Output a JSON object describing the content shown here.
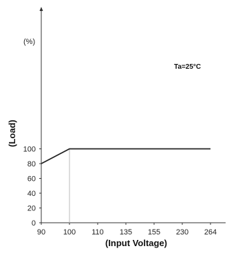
{
  "chart_data": {
    "type": "line",
    "x_categories": [
      "90",
      "100",
      "110",
      "135",
      "155",
      "230",
      "264"
    ],
    "y_ticks": [
      0,
      20,
      40,
      60,
      80,
      100
    ],
    "ylim": [
      0,
      120
    ],
    "xlabel": "(Input Voltage)",
    "ylabel": "(Load)",
    "y_unit": "(%)",
    "annotation": "Ta=25°C",
    "series": [
      {
        "x": [
          "90",
          "100",
          "264"
        ],
        "values": [
          80,
          100,
          100
        ]
      }
    ],
    "reference_line_x": "100",
    "grid": false,
    "colors": {
      "line": "#222222",
      "axis": "#333333",
      "reference": "#bbbbbb"
    }
  }
}
